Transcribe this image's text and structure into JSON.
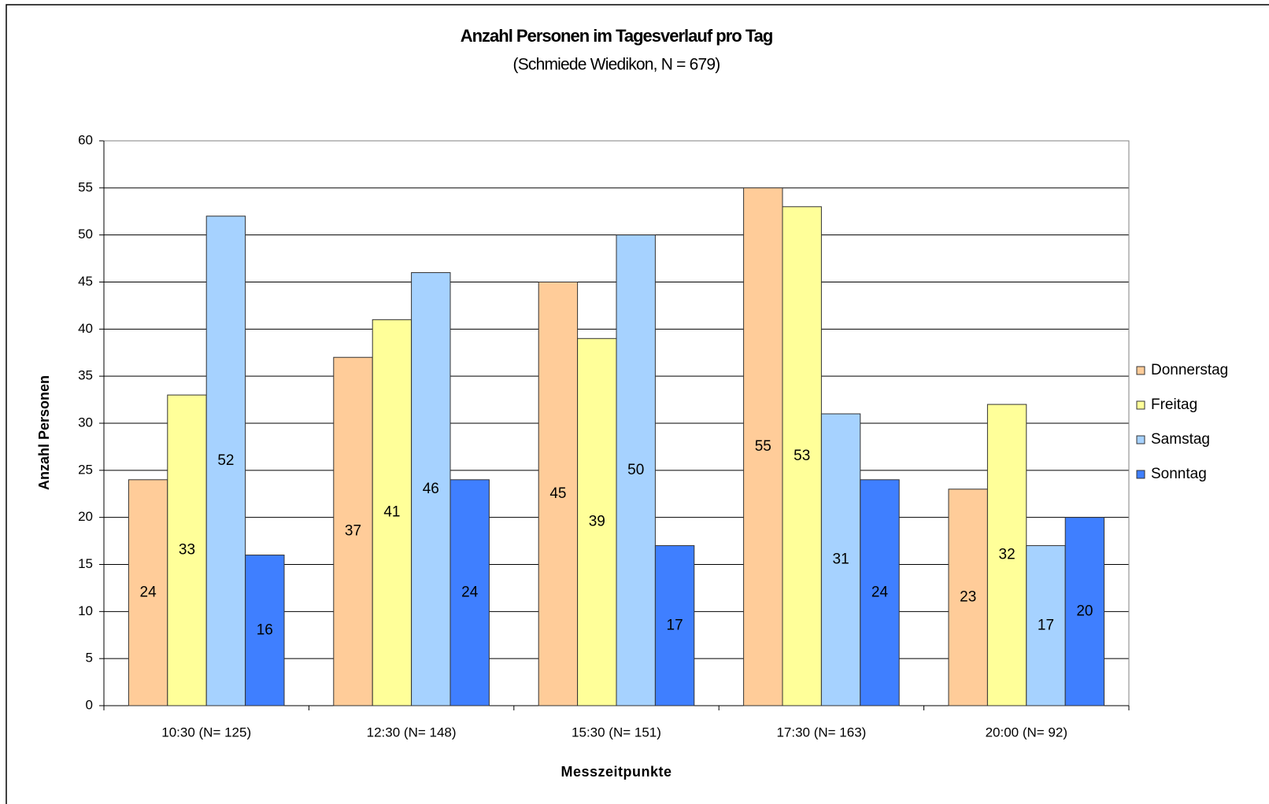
{
  "chart_data": {
    "type": "bar",
    "title": "Anzahl Personen im Tagesverlauf pro Tag",
    "subtitle": "(Schmiede Wiedikon, N = 679)",
    "x_label": "Messzeitpunkte",
    "y_label": "Anzahl Personen",
    "categories": [
      "10:30 (N= 125)",
      "12:30 (N= 148)",
      "15:30 (N= 151)",
      "17:30 (N= 163)",
      "20:00 (N= 92)"
    ],
    "series": [
      {
        "name": "Donnerstag",
        "color": "#FFCC99",
        "values": [
          24,
          37,
          45,
          55,
          23
        ]
      },
      {
        "name": "Freitag",
        "color": "#FFFF99",
        "values": [
          33,
          41,
          39,
          53,
          32
        ]
      },
      {
        "name": "Samstag",
        "color": "#A6D2FF",
        "values": [
          52,
          46,
          50,
          31,
          17
        ]
      },
      {
        "name": "Sonntag",
        "color": "#3F7FFF",
        "values": [
          16,
          24,
          17,
          24,
          20
        ]
      }
    ],
    "ylim": [
      0,
      60
    ],
    "yticks": [
      0,
      5,
      10,
      15,
      20,
      25,
      30,
      35,
      40,
      45,
      50,
      55,
      60
    ],
    "grid": true,
    "legend": "right"
  }
}
